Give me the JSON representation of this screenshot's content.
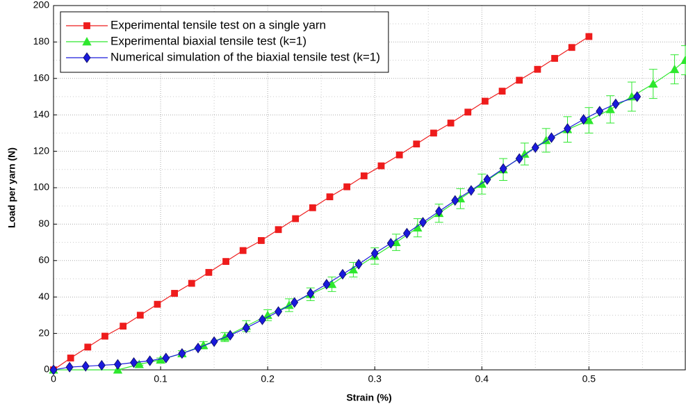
{
  "chart_data": {
    "type": "line",
    "xlabel": "Strain (%)",
    "ylabel": "Load per yarn (N)",
    "xlim": [
      0,
      0.59
    ],
    "ylim": [
      0,
      200
    ],
    "xticks": [
      0,
      0.1,
      0.2,
      0.3,
      0.4,
      0.5
    ],
    "yticks": [
      0,
      20,
      40,
      60,
      80,
      100,
      120,
      140,
      160,
      180,
      200
    ],
    "grid": true,
    "legend": "upper left",
    "series": [
      {
        "name": "Experimental tensile test on a single yarn",
        "color": "#ee1c1c",
        "marker": "square",
        "x": [
          0,
          0.016,
          0.032,
          0.048,
          0.065,
          0.081,
          0.097,
          0.113,
          0.129,
          0.145,
          0.161,
          0.177,
          0.194,
          0.21,
          0.226,
          0.242,
          0.258,
          0.274,
          0.29,
          0.306,
          0.323,
          0.339,
          0.355,
          0.371,
          0.387,
          0.403,
          0.419,
          0.435,
          0.452,
          0.468,
          0.484,
          0.5
        ],
        "values": [
          0,
          6.5,
          12.5,
          18.5,
          24,
          30,
          36,
          42,
          47.5,
          53.5,
          59.5,
          65.5,
          71,
          77,
          83,
          89,
          95,
          100.5,
          106.5,
          112,
          118,
          124,
          130,
          135.5,
          141.5,
          147.5,
          153,
          159,
          165,
          171,
          177,
          183
        ]
      },
      {
        "name": "Experimental biaxial tensile test (k=1)",
        "color": "#2ee82e",
        "marker": "triangle",
        "x": [
          0,
          0.06,
          0.08,
          0.1,
          0.12,
          0.14,
          0.16,
          0.18,
          0.2,
          0.22,
          0.24,
          0.26,
          0.28,
          0.3,
          0.32,
          0.34,
          0.36,
          0.38,
          0.4,
          0.42,
          0.44,
          0.46,
          0.48,
          0.5,
          0.52,
          0.54,
          0.56,
          0.58,
          0.59
        ],
        "values": [
          0,
          0,
          3,
          5.5,
          9,
          13.5,
          18,
          24,
          30,
          35.5,
          41.5,
          47,
          55,
          62.5,
          70,
          78,
          86,
          94,
          102,
          110,
          118.5,
          126,
          132,
          137,
          143,
          150,
          157,
          165,
          170
        ],
        "errors": [
          0,
          0,
          0.5,
          1,
          1.5,
          2,
          2.5,
          3,
          3,
          3.5,
          3.5,
          4,
          4,
          4.5,
          4.5,
          5,
          5,
          5.5,
          5.5,
          6,
          6,
          6.5,
          7,
          7,
          7.5,
          8,
          8,
          8,
          8
        ]
      },
      {
        "name": "Numerical simulation of the biaxial tensile test (k=1)",
        "color": "#1a1adc",
        "marker": "diamond",
        "x": [
          0,
          0.015,
          0.03,
          0.045,
          0.06,
          0.075,
          0.09,
          0.105,
          0.12,
          0.135,
          0.15,
          0.165,
          0.18,
          0.195,
          0.21,
          0.225,
          0.24,
          0.255,
          0.27,
          0.285,
          0.3,
          0.315,
          0.33,
          0.345,
          0.36,
          0.375,
          0.39,
          0.405,
          0.42,
          0.435,
          0.45,
          0.465,
          0.48,
          0.495,
          0.51,
          0.525,
          0.545
        ],
        "values": [
          0,
          1.5,
          2,
          2.5,
          3,
          4,
          5,
          6.5,
          9,
          12,
          15.5,
          19,
          23,
          27.5,
          32,
          37,
          42,
          47,
          52.5,
          58,
          64,
          69.5,
          75,
          81,
          87,
          93,
          98.5,
          104.5,
          110.5,
          116,
          122,
          127.5,
          132.5,
          137.5,
          142,
          146,
          150
        ]
      }
    ]
  }
}
